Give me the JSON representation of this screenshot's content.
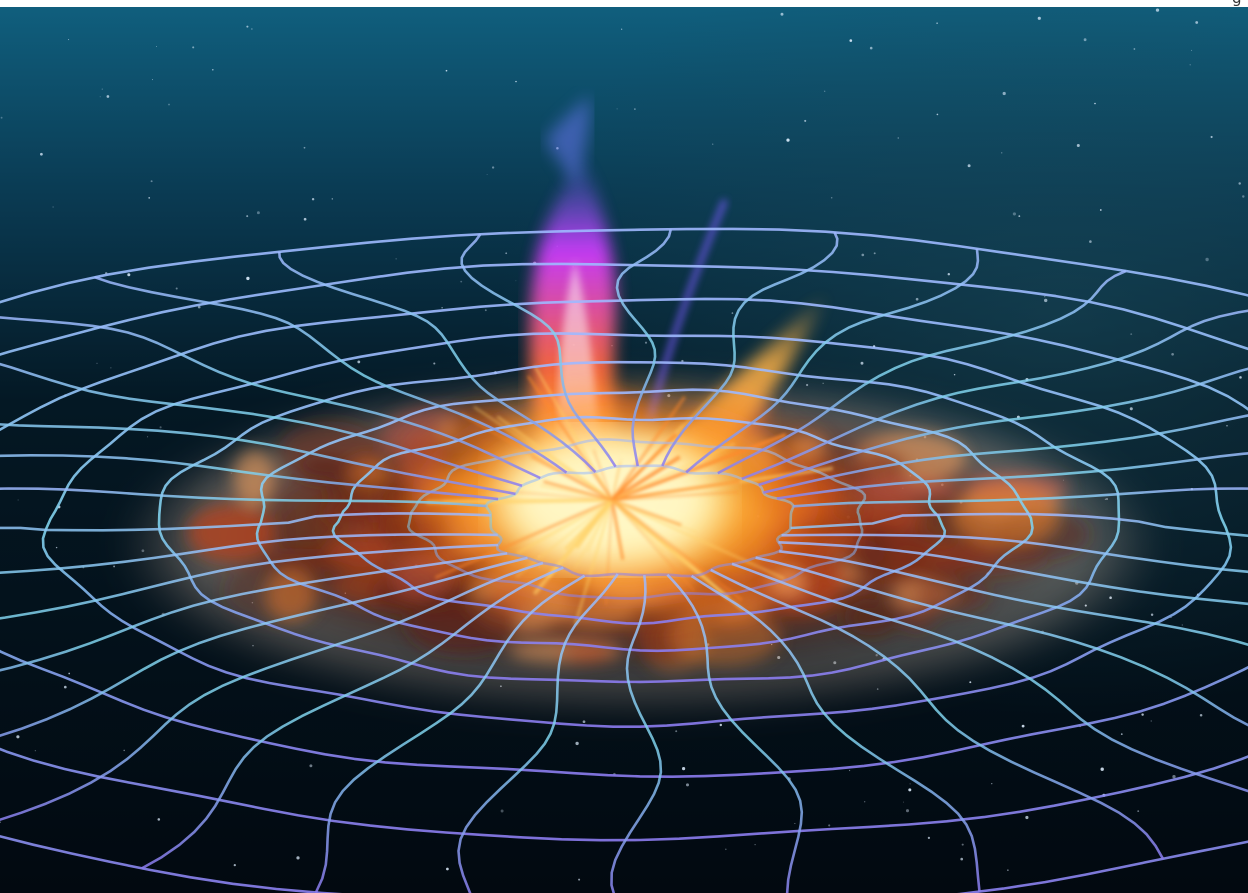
{
  "scene": {
    "subject": "gravitational-wave-explosion",
    "colors": {
      "sky_top": "#0e5a78",
      "sky_mid": "#062536",
      "sky_bottom": "#020a12",
      "grid_near": "#8a8cff",
      "grid_far": "#6fd0e8",
      "fire_core": "#fff6b0",
      "fire_mid": "#ff9a1e",
      "fire_outer": "#c8320e",
      "jet_color": "#d03cff"
    }
  },
  "corner_glyph": "g"
}
